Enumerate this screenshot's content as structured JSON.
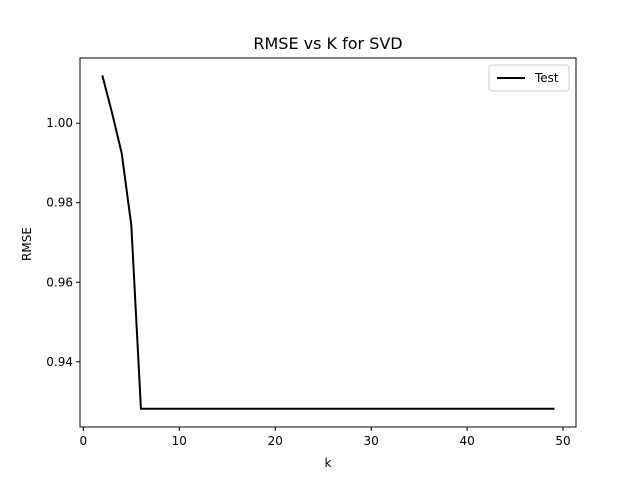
{
  "chart_data": {
    "type": "line",
    "title": "RMSE vs K for SVD",
    "xlabel": "k",
    "ylabel": "RMSE",
    "xlim": [
      -0.35,
      51.35
    ],
    "ylim": [
      0.9236,
      1.0164
    ],
    "xticks": [
      0,
      10,
      20,
      30,
      40,
      50
    ],
    "yticks": [
      0.94,
      0.96,
      0.98,
      1.0
    ],
    "ytick_labels": [
      "0.94",
      "0.96",
      "0.98",
      "1.00"
    ],
    "grid": false,
    "legend_position": "top-right",
    "series": [
      {
        "name": "Test",
        "color": "#000000",
        "x": [
          2,
          3,
          4,
          5,
          6,
          7,
          8,
          9,
          10,
          11,
          12,
          13,
          14,
          15,
          16,
          17,
          18,
          19,
          20,
          21,
          22,
          23,
          24,
          25,
          26,
          27,
          28,
          29,
          30,
          31,
          32,
          33,
          34,
          35,
          36,
          37,
          38,
          39,
          40,
          41,
          42,
          43,
          44,
          45,
          46,
          47,
          48,
          49
        ],
        "y": [
          1.0118,
          1.0025,
          0.9924,
          0.9743,
          0.9282,
          0.9282,
          0.9282,
          0.9282,
          0.9282,
          0.9282,
          0.9282,
          0.9282,
          0.9282,
          0.9282,
          0.9282,
          0.9282,
          0.9282,
          0.9282,
          0.9282,
          0.9282,
          0.9282,
          0.9282,
          0.9282,
          0.9282,
          0.9282,
          0.9282,
          0.9282,
          0.9282,
          0.9282,
          0.9282,
          0.9282,
          0.9282,
          0.9282,
          0.9282,
          0.9282,
          0.9282,
          0.9282,
          0.9282,
          0.9282,
          0.9282,
          0.9282,
          0.9282,
          0.9282,
          0.9282,
          0.9282,
          0.9282,
          0.9282,
          0.9282
        ]
      }
    ]
  }
}
